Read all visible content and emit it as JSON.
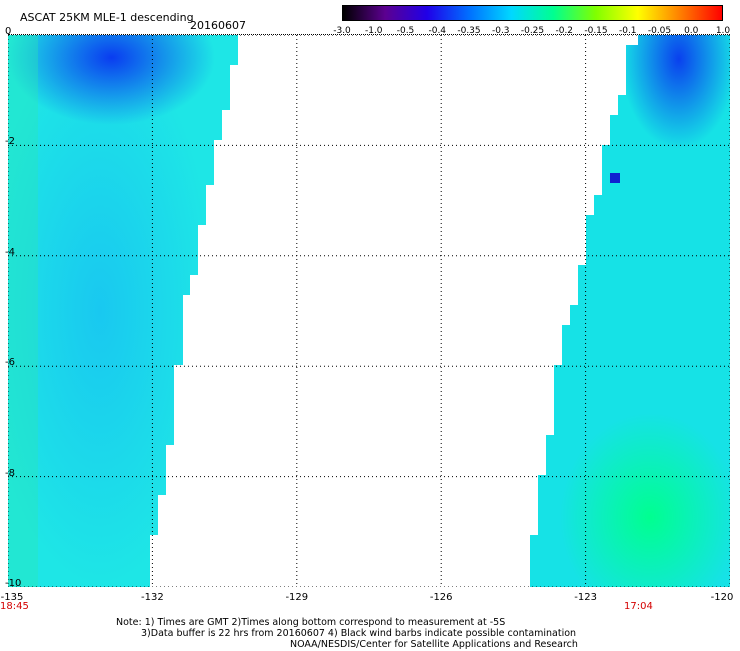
{
  "header": {
    "title": "ASCAT 25KM MLE-1 descending",
    "date": "20160607"
  },
  "colorbar": {
    "labels": [
      "-3.0",
      "-1.0",
      "-0.5",
      "-0.4",
      "-0.35",
      "-0.3",
      "-0.25",
      "-0.2",
      "-0.15",
      "-0.1",
      "-0.05",
      "0.0",
      "1.0"
    ],
    "colors": [
      "#000000",
      "#5c0090",
      "#2000e8",
      "#0070ff",
      "#00d8ff",
      "#00ff90",
      "#80ff00",
      "#ffff00",
      "#ff8000",
      "#ff0000"
    ]
  },
  "axes": {
    "y_labels": [
      "0",
      "-2",
      "-4",
      "-6",
      "-8",
      "-10"
    ],
    "x_labels": [
      "-135",
      "-132",
      "-129",
      "-126",
      "-123",
      "-120"
    ],
    "x_range": [
      -135,
      -120
    ],
    "y_range": [
      0,
      -10
    ]
  },
  "swaths": {
    "left_start_time": "18:45",
    "right_start_time": "17:04"
  },
  "footer": {
    "line1": "Note: 1) Times are GMT 2)Times along bottom correspond to measurement at -5S",
    "line2": "3)Data buffer is 22 hrs from 20160607 4) Black wind barbs indicate possible contamination",
    "line3": "NOAA/NESDIS/Center for Satellite Applications and Research"
  }
}
